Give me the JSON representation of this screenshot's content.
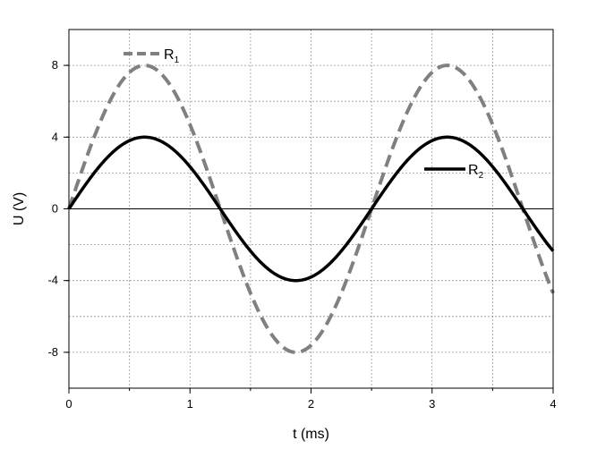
{
  "chart_data": {
    "type": "line",
    "title": "",
    "xlabel": "t (ms)",
    "ylabel": "U (V)",
    "xlim": [
      0,
      4
    ],
    "ylim": [
      -10,
      10
    ],
    "x_ticks": [
      0,
      1,
      2,
      3,
      4
    ],
    "x_tick_labels": [
      "0",
      "1",
      "2",
      "3",
      "4"
    ],
    "y_ticks": [
      -8,
      -4,
      0,
      4,
      8
    ],
    "y_tick_labels": [
      "-8",
      "-4",
      "0",
      "4",
      "8"
    ],
    "grid": true,
    "series": [
      {
        "name": "R",
        "name_subscript": "1",
        "color": "#808080",
        "style": "dashed",
        "amplitude": 8,
        "period": 2.5,
        "x": [
          0,
          0.125,
          0.25,
          0.375,
          0.5,
          0.625,
          0.75,
          0.875,
          1.0,
          1.125,
          1.25,
          1.375,
          1.5,
          1.625,
          1.75,
          1.875,
          2.0,
          2.125,
          2.25,
          2.375,
          2.5,
          2.625,
          2.75,
          2.875,
          3.0,
          3.125,
          3.25,
          3.375,
          3.5,
          3.625,
          3.75,
          3.875,
          4.0
        ],
        "values": [
          0,
          2.47,
          4.7,
          6.47,
          7.61,
          8.0,
          7.61,
          6.47,
          4.7,
          2.47,
          0,
          -2.47,
          -4.7,
          -6.47,
          -7.61,
          -8.0,
          -7.61,
          -6.47,
          -4.7,
          -2.47,
          0,
          2.47,
          4.7,
          6.47,
          7.61,
          8.0,
          7.61,
          6.47,
          4.7,
          2.47,
          0,
          -2.47,
          -4.7
        ]
      },
      {
        "name": "R",
        "name_subscript": "2",
        "color": "#000000",
        "style": "solid",
        "amplitude": 4,
        "period": 2.5,
        "x": [
          0,
          0.125,
          0.25,
          0.375,
          0.5,
          0.625,
          0.75,
          0.875,
          1.0,
          1.125,
          1.25,
          1.375,
          1.5,
          1.625,
          1.75,
          1.875,
          2.0,
          2.125,
          2.25,
          2.375,
          2.5,
          2.625,
          2.75,
          2.875,
          3.0,
          3.125,
          3.25,
          3.375,
          3.5,
          3.625,
          3.75,
          3.875,
          4.0
        ],
        "values": [
          0,
          1.24,
          2.35,
          3.24,
          3.8,
          4.0,
          3.8,
          3.24,
          2.35,
          1.24,
          0,
          -1.24,
          -2.35,
          -3.24,
          -3.8,
          -4.0,
          -3.8,
          -3.24,
          -2.35,
          -1.24,
          0,
          1.24,
          2.35,
          3.24,
          3.8,
          4.0,
          3.8,
          3.24,
          2.35,
          1.24,
          0,
          -1.24,
          -2.35
        ]
      }
    ]
  }
}
